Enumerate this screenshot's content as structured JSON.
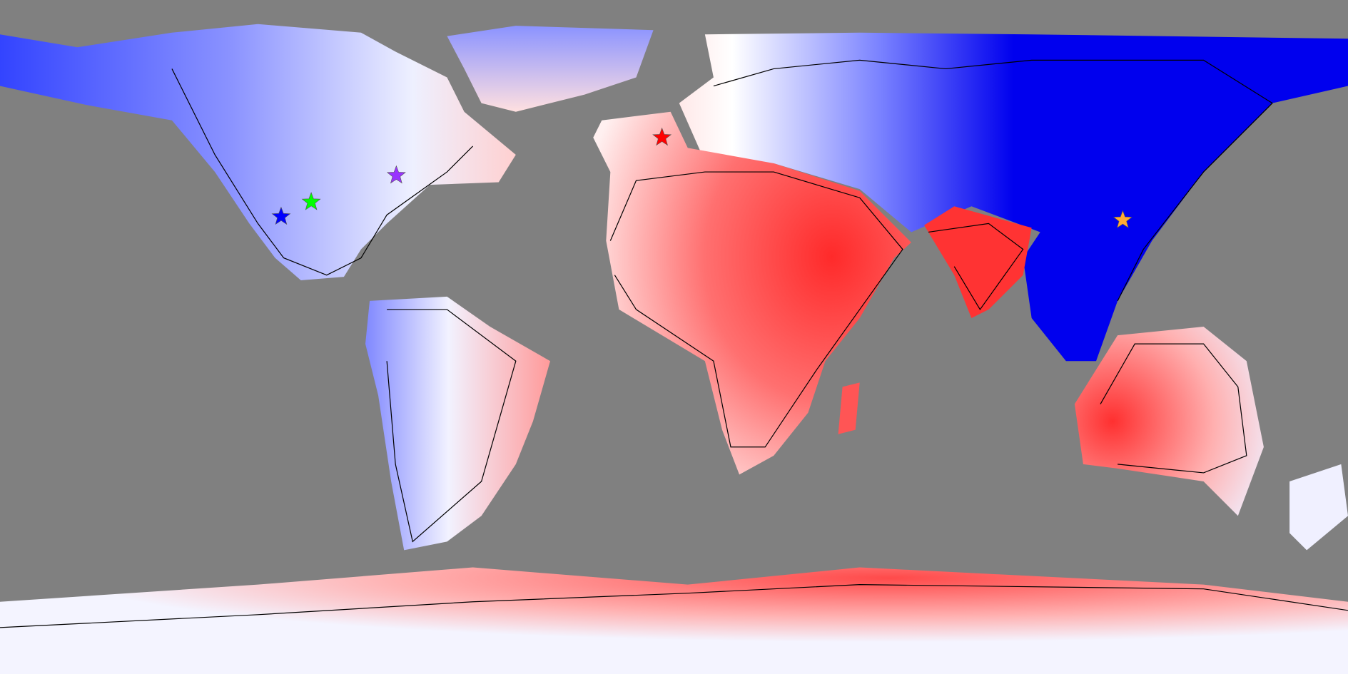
{
  "map": {
    "markers": [
      {
        "color": "#0000ff"
      },
      {
        "color": "#00ff00"
      },
      {
        "color": "#9933ff"
      },
      {
        "color": "#ff0000"
      },
      {
        "color": "#ffaa33"
      }
    ]
  }
}
